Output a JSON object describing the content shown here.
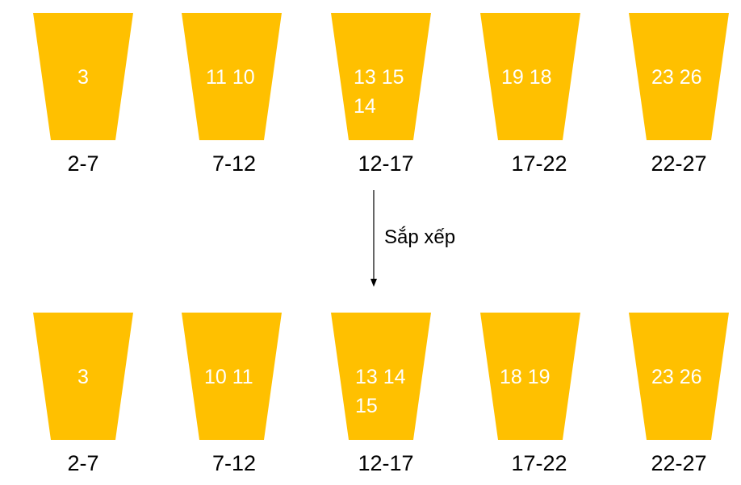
{
  "colors": {
    "bucket_fill": "#FFC000",
    "bucket_text": "#FFFFFF",
    "label": "#000000"
  },
  "arrow_label": "Sắp xếp",
  "rows": [
    {
      "id": "before",
      "buckets": [
        {
          "range": "2-7",
          "lines": [
            "3"
          ]
        },
        {
          "range": "7-12",
          "lines": [
            "11 10"
          ]
        },
        {
          "range": "12-17",
          "lines": [
            "13 15",
            "14"
          ]
        },
        {
          "range": "17-22",
          "lines": [
            "19 18"
          ]
        },
        {
          "range": "22-27",
          "lines": [
            "23 26"
          ]
        }
      ]
    },
    {
      "id": "after",
      "buckets": [
        {
          "range": "2-7",
          "lines": [
            "3"
          ]
        },
        {
          "range": "7-12",
          "lines": [
            "10 11"
          ]
        },
        {
          "range": "12-17",
          "lines": [
            "13 14",
            "15"
          ]
        },
        {
          "range": "17-22",
          "lines": [
            "18 19"
          ]
        },
        {
          "range": "22-27",
          "lines": [
            "23 26"
          ]
        }
      ]
    }
  ]
}
